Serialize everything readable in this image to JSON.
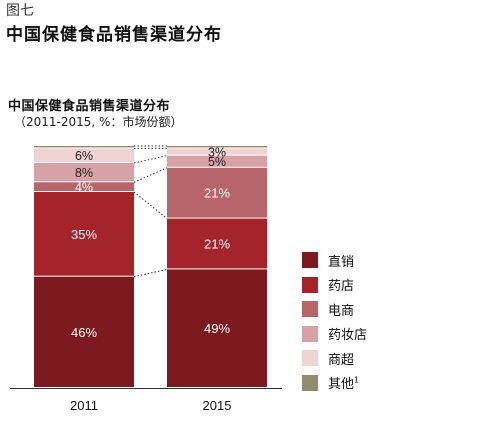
{
  "header": {
    "figure_label": "图七",
    "title": "中国保健食品销售渠道分布"
  },
  "chart_data": {
    "type": "bar",
    "stacked": true,
    "normalized": true,
    "title": "中国保健食品销售渠道分布",
    "subtitle": "（2011-2015, %：市场份额）",
    "categories": [
      "2011",
      "2015"
    ],
    "series": [
      {
        "name": "直销",
        "color": "#7c1a1f",
        "values": [
          46,
          49
        ],
        "labels": [
          "46%",
          "49%"
        ]
      },
      {
        "name": "药店",
        "color": "#a5242b",
        "values": [
          35,
          21
        ],
        "labels": [
          "35%",
          "21%"
        ]
      },
      {
        "name": "电商",
        "color": "#b7656a",
        "values": [
          4,
          21
        ],
        "labels": [
          "4%",
          "21%"
        ]
      },
      {
        "name": "药妆店",
        "color": "#d6a2a5",
        "values": [
          8,
          5
        ],
        "labels": [
          "8%",
          "5%"
        ]
      },
      {
        "name": "商超",
        "color": "#efd3d4",
        "values": [
          6,
          3
        ],
        "labels": [
          "6%",
          "3%"
        ]
      },
      {
        "name": "其他",
        "name_superscript": "1",
        "color": "#938b6b",
        "values": [
          1,
          1
        ],
        "labels": [
          "",
          ""
        ]
      }
    ],
    "ylim": [
      0,
      100
    ],
    "grid": false,
    "legend_position": "right"
  }
}
